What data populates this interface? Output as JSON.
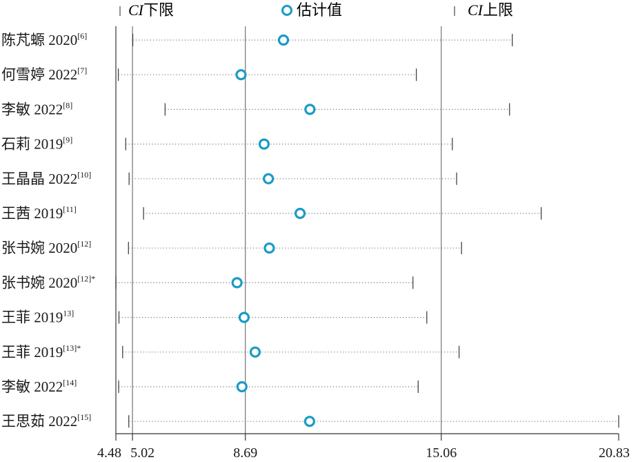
{
  "legend": {
    "ci_lower": "CI下限",
    "estimate": "估计值",
    "ci_upper": "CI上限",
    "ci_prefix": "CI"
  },
  "colors": {
    "estimate_marker": "#1a9bc4",
    "line": "#555555",
    "text": "#1a1a1a"
  },
  "chart_data": {
    "type": "forest",
    "x_ticks": [
      4.48,
      5.02,
      8.69,
      15.06,
      20.83
    ],
    "xlim": [
      4.48,
      20.83
    ],
    "reference_lines": [
      5.02,
      8.69,
      15.06
    ],
    "grid": false,
    "legend_position": "top",
    "studies": [
      {
        "label": "陈芃螈 2020",
        "ref": "[6]",
        "lower": 5.03,
        "estimate": 9.93,
        "upper": 17.37
      },
      {
        "label": "何雪婷 2022",
        "ref": "[7]",
        "lower": 4.56,
        "estimate": 8.55,
        "upper": 14.25
      },
      {
        "label": "李敏 2022",
        "ref": "[8]",
        "lower": 6.08,
        "estimate": 10.79,
        "upper": 17.28
      },
      {
        "label": "石莉 2019",
        "ref": "[9]",
        "lower": 4.8,
        "estimate": 9.3,
        "upper": 15.42
      },
      {
        "label": "王晶晶 2022",
        "ref": "[10]",
        "lower": 4.91,
        "estimate": 9.44,
        "upper": 15.56
      },
      {
        "label": "王茜 2019",
        "ref": "[11]",
        "lower": 5.38,
        "estimate": 10.47,
        "upper": 18.31
      },
      {
        "label": "张书婉 2020",
        "ref": "[12]",
        "lower": 4.89,
        "estimate": 9.47,
        "upper": 15.72
      },
      {
        "label": "张书婉 2020",
        "ref": "[12]*",
        "lower": 4.48,
        "estimate": 8.42,
        "upper": 14.14
      },
      {
        "label": "王菲 2019",
        "ref": "13]",
        "lower": 4.58,
        "estimate": 8.65,
        "upper": 14.59
      },
      {
        "label": "王菲 2019",
        "ref": "[13]*",
        "lower": 4.7,
        "estimate": 9.01,
        "upper": 15.64
      },
      {
        "label": "李敏 2022",
        "ref": "[14]",
        "lower": 4.57,
        "estimate": 8.58,
        "upper": 14.31
      },
      {
        "label": "王思茹 2022",
        "ref": "[15]",
        "lower": 4.9,
        "estimate": 10.78,
        "upper": 20.83
      }
    ]
  }
}
